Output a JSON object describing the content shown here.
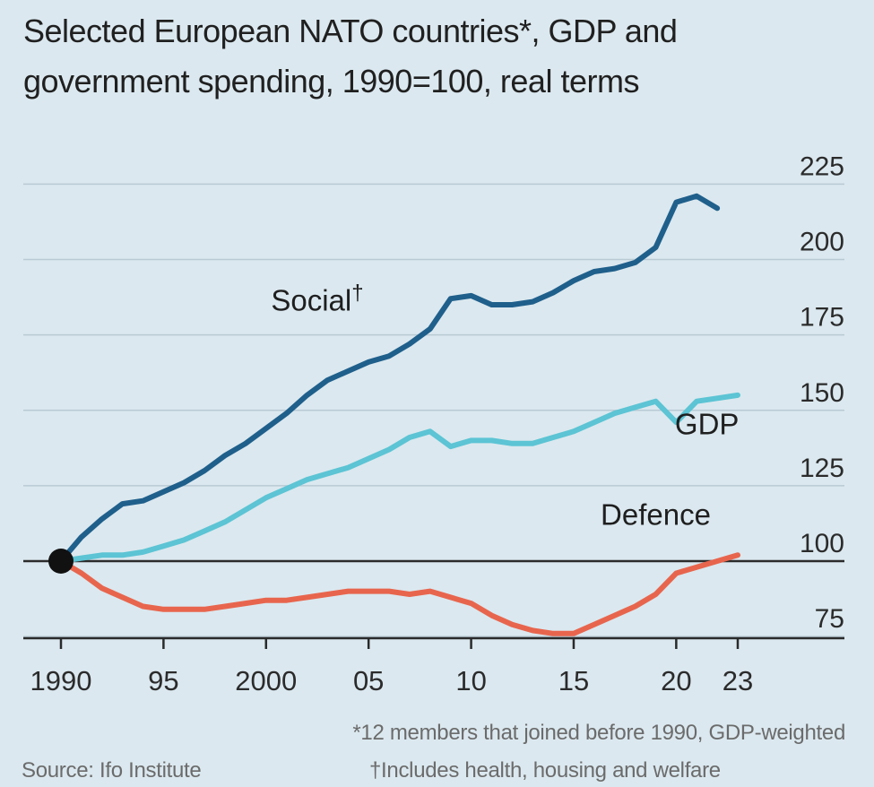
{
  "chart_data": {
    "type": "line",
    "title": "Selected European NATO countries*, GDP and",
    "title_line2": "government spending, 1990=100, real terms",
    "x_ticks": [
      {
        "x": 1990,
        "label": "1990"
      },
      {
        "x": 1995,
        "label": "95"
      },
      {
        "x": 2000,
        "label": "2000"
      },
      {
        "x": 2005,
        "label": "05"
      },
      {
        "x": 2010,
        "label": "10"
      },
      {
        "x": 2015,
        "label": "15"
      },
      {
        "x": 2020,
        "label": "20"
      },
      {
        "x": 2023,
        "label": "23"
      }
    ],
    "y_ticks": [
      75,
      100,
      125,
      150,
      175,
      200,
      225
    ],
    "ylim": [
      70,
      230
    ],
    "xlim": [
      1990,
      2023
    ],
    "baseline": 100,
    "y_axis_side": "right",
    "grid": true,
    "series": [
      {
        "name": "Social",
        "name_mark": "†",
        "color": "#1f5f8b",
        "x": [
          1990,
          1991,
          1992,
          1993,
          1994,
          1995,
          1996,
          1997,
          1998,
          1999,
          2000,
          2001,
          2002,
          2003,
          2004,
          2005,
          2006,
          2007,
          2008,
          2009,
          2010,
          2011,
          2012,
          2013,
          2014,
          2015,
          2016,
          2017,
          2018,
          2019,
          2020,
          2021,
          2022
        ],
        "values": [
          100,
          108,
          114,
          119,
          120,
          123,
          126,
          130,
          135,
          139,
          144,
          149,
          155,
          160,
          163,
          166,
          168,
          172,
          177,
          187,
          188,
          185,
          185,
          186,
          189,
          193,
          196,
          197,
          199,
          204,
          219,
          221,
          217
        ]
      },
      {
        "name": "GDP",
        "color": "#5cc4d4",
        "x": [
          1990,
          1991,
          1992,
          1993,
          1994,
          1995,
          1996,
          1997,
          1998,
          1999,
          2000,
          2001,
          2002,
          2003,
          2004,
          2005,
          2006,
          2007,
          2008,
          2009,
          2010,
          2011,
          2012,
          2013,
          2014,
          2015,
          2016,
          2017,
          2018,
          2019,
          2020,
          2021,
          2022,
          2023
        ],
        "values": [
          100,
          101,
          102,
          102,
          103,
          105,
          107,
          110,
          113,
          117,
          121,
          124,
          127,
          129,
          131,
          134,
          137,
          141,
          143,
          138,
          140,
          140,
          139,
          139,
          141,
          143,
          146,
          149,
          151,
          153,
          146,
          153,
          154,
          155
        ]
      },
      {
        "name": "Defence",
        "color": "#e8654d",
        "x": [
          1990,
          1991,
          1992,
          1993,
          1994,
          1995,
          1996,
          1997,
          1998,
          1999,
          2000,
          2001,
          2002,
          2003,
          2004,
          2005,
          2006,
          2007,
          2008,
          2009,
          2010,
          2011,
          2012,
          2013,
          2014,
          2015,
          2016,
          2017,
          2018,
          2019,
          2020,
          2021,
          2022,
          2023
        ],
        "values": [
          100,
          96,
          91,
          88,
          85,
          84,
          84,
          84,
          85,
          86,
          87,
          87,
          88,
          89,
          90,
          90,
          90,
          89,
          90,
          88,
          86,
          82,
          79,
          77,
          76,
          76,
          79,
          82,
          85,
          89,
          96,
          98,
          100,
          102
        ]
      }
    ],
    "series_label_positions": {
      "Social": [
        2002.5,
        183
      ],
      "GDP": [
        2021.5,
        142
      ],
      "Defence": [
        2019,
        112
      ]
    }
  },
  "footnotes": {
    "members": "*12 members that joined before 1990, GDP-weighted",
    "source": "Source: Ifo Institute",
    "includes": "†Includes health, housing and welfare"
  },
  "colors": {
    "background": "#dbe8ef",
    "grid": "#b9cad4",
    "axis": "#2a2a2a",
    "baseline_marker": "#111111"
  }
}
